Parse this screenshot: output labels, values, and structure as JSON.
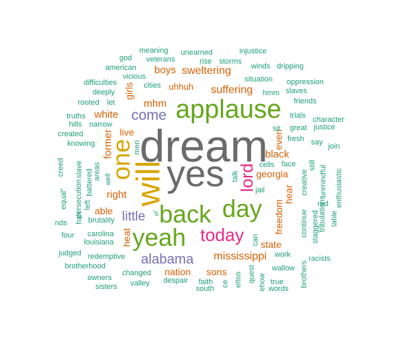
{
  "colors": {
    "grey": "#6b6b6b",
    "yellow": "#d9a400",
    "green": "#66a61e",
    "magenta": "#e7298a",
    "purple": "#7570b3",
    "orange": "#d95f02",
    "teal": "#1b9e77"
  },
  "words": [
    {
      "text": "dream",
      "color": "grey"
    },
    {
      "text": "yes",
      "color": "grey"
    },
    {
      "text": "will",
      "color": "yellow"
    },
    {
      "text": "one",
      "color": "yellow"
    },
    {
      "text": "applause",
      "color": "green"
    },
    {
      "text": "back",
      "color": "green"
    },
    {
      "text": "day",
      "color": "green"
    },
    {
      "text": "yeah",
      "color": "green"
    },
    {
      "text": "today",
      "color": "magenta"
    },
    {
      "text": "lord",
      "color": "magenta"
    },
    {
      "text": "come",
      "color": "purple"
    },
    {
      "text": "alabama",
      "color": "purple"
    },
    {
      "text": "little",
      "color": "purple"
    },
    {
      "text": "mississippi",
      "color": "orange"
    },
    {
      "text": "sweltering",
      "color": "orange"
    },
    {
      "text": "suffering",
      "color": "orange"
    },
    {
      "text": "boys",
      "color": "orange"
    },
    {
      "text": "mhm",
      "color": "orange"
    },
    {
      "text": "white",
      "color": "orange"
    },
    {
      "text": "uhhuh",
      "color": "orange"
    },
    {
      "text": "girls",
      "color": "orange"
    },
    {
      "text": "live",
      "color": "orange"
    },
    {
      "text": "former",
      "color": "orange"
    },
    {
      "text": "right",
      "color": "orange"
    },
    {
      "text": "able",
      "color": "orange"
    },
    {
      "text": "heat",
      "color": "orange"
    },
    {
      "text": "nation",
      "color": "orange"
    },
    {
      "text": "sons",
      "color": "orange"
    },
    {
      "text": "state",
      "color": "orange"
    },
    {
      "text": "freedom",
      "color": "orange"
    },
    {
      "text": "georgia",
      "color": "orange"
    },
    {
      "text": "black",
      "color": "orange"
    },
    {
      "text": "even",
      "color": "orange"
    },
    {
      "text": "hear",
      "color": "orange"
    },
    {
      "text": "god",
      "color": "teal"
    },
    {
      "text": "meaning",
      "color": "teal"
    },
    {
      "text": "unearned",
      "color": "teal"
    },
    {
      "text": "injustice",
      "color": "teal"
    },
    {
      "text": "american",
      "color": "teal"
    },
    {
      "text": "veterans",
      "color": "teal"
    },
    {
      "text": "vicious",
      "color": "teal"
    },
    {
      "text": "rise",
      "color": "teal"
    },
    {
      "text": "storms",
      "color": "teal"
    },
    {
      "text": "winds",
      "color": "teal"
    },
    {
      "text": "dripping",
      "color": "teal"
    },
    {
      "text": "difficulties",
      "color": "teal"
    },
    {
      "text": "cities",
      "color": "teal"
    },
    {
      "text": "situation",
      "color": "teal"
    },
    {
      "text": "oppression",
      "color": "teal"
    },
    {
      "text": "deeply",
      "color": "teal"
    },
    {
      "text": "hmm",
      "color": "teal"
    },
    {
      "text": "slaves",
      "color": "teal"
    },
    {
      "text": "rooted",
      "color": "teal"
    },
    {
      "text": "let",
      "color": "teal"
    },
    {
      "text": "friends",
      "color": "teal"
    },
    {
      "text": "truths",
      "color": "teal"
    },
    {
      "text": "trials",
      "color": "teal"
    },
    {
      "text": "character",
      "color": "teal"
    },
    {
      "text": "hills",
      "color": "teal"
    },
    {
      "text": "narrow",
      "color": "teal"
    },
    {
      "text": "sit",
      "color": "teal"
    },
    {
      "text": "great",
      "color": "teal"
    },
    {
      "text": "justice",
      "color": "teal"
    },
    {
      "text": "created",
      "color": "teal"
    },
    {
      "text": "fresh",
      "color": "teal"
    },
    {
      "text": "say",
      "color": "teal"
    },
    {
      "text": "knowing",
      "color": "teal"
    },
    {
      "text": "men",
      "color": "teal"
    },
    {
      "text": "join",
      "color": "teal"
    },
    {
      "text": "creed",
      "color": "teal"
    },
    {
      "text": "slave",
      "color": "teal"
    },
    {
      "text": "battered",
      "color": "teal"
    },
    {
      "text": "areas",
      "color": "teal"
    },
    {
      "text": "well",
      "color": "teal"
    },
    {
      "text": "cells",
      "color": "teal"
    },
    {
      "text": "face",
      "color": "teal"
    },
    {
      "text": "still",
      "color": "teal"
    },
    {
      "text": "talk",
      "color": "teal"
    },
    {
      "text": "jail",
      "color": "teal"
    },
    {
      "text": "creative",
      "color": "teal"
    },
    {
      "text": "unmindful",
      "color": "teal"
    },
    {
      "text": "enthusiastic",
      "color": "teal"
    },
    {
      "text": "equal\"",
      "color": "teal"
    },
    {
      "text": "persecution",
      "color": "teal"
    },
    {
      "text": "left",
      "color": "teal"
    },
    {
      "text": "hah",
      "color": "teal"
    },
    {
      "text": "red",
      "color": "teal"
    },
    {
      "text": "nds",
      "color": "teal"
    },
    {
      "text": "brutality",
      "color": "teal"
    },
    {
      "text": "'s",
      "color": "teal"
    },
    {
      "text": "continue",
      "color": "teal"
    },
    {
      "text": "staggered",
      "color": "teal"
    },
    {
      "text": "tribulations",
      "color": "teal"
    },
    {
      "text": "table",
      "color": "teal"
    },
    {
      "text": "four",
      "color": "teal"
    },
    {
      "text": "carolina",
      "color": "teal"
    },
    {
      "text": "louisiana",
      "color": "teal"
    },
    {
      "text": "can",
      "color": "teal"
    },
    {
      "text": "judged",
      "color": "teal"
    },
    {
      "text": "redemptive",
      "color": "teal"
    },
    {
      "text": "work",
      "color": "teal"
    },
    {
      "text": "racists",
      "color": "teal"
    },
    {
      "text": "brotherhood",
      "color": "teal"
    },
    {
      "text": "wallow",
      "color": "teal"
    },
    {
      "text": "owners",
      "color": "teal"
    },
    {
      "text": "changed",
      "color": "teal"
    },
    {
      "text": "despair",
      "color": "teal"
    },
    {
      "text": "faith",
      "color": "teal"
    },
    {
      "text": "ettos",
      "color": "teal"
    },
    {
      "text": "quest",
      "color": "teal"
    },
    {
      "text": "true",
      "color": "teal"
    },
    {
      "text": "brothers",
      "color": "teal"
    },
    {
      "text": "sisters",
      "color": "teal"
    },
    {
      "text": "valley",
      "color": "teal"
    },
    {
      "text": "south",
      "color": "teal"
    },
    {
      "text": "ce",
      "color": "teal"
    },
    {
      "text": "ehow",
      "color": "teal"
    },
    {
      "text": "words",
      "color": "teal"
    }
  ]
}
